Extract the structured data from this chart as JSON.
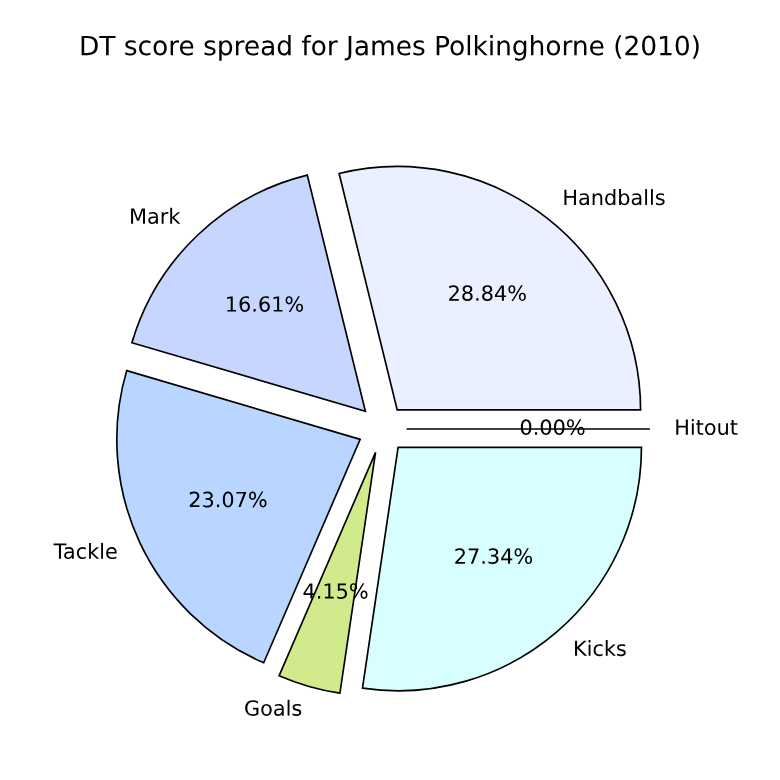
{
  "chart_data": {
    "type": "pie",
    "title": "DT score spread for James Polkinghorne (2010)",
    "categories": [
      "Handballs",
      "Mark",
      "Tackle",
      "Goals",
      "Kicks",
      "Hitout"
    ],
    "values": [
      28.84,
      16.61,
      23.07,
      4.15,
      27.34,
      0.0
    ],
    "colors": [
      "#eaf0ff",
      "#c6d6ff",
      "#b8d6ff",
      "#d0ea8c",
      "#d8ffff",
      "#ffffff"
    ],
    "value_labels": [
      "28.84%",
      "16.61%",
      "23.07%",
      "4.15%",
      "27.34%",
      "0.00%"
    ]
  }
}
